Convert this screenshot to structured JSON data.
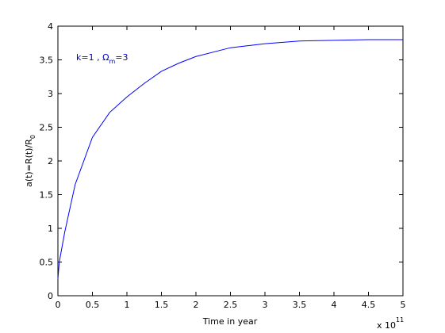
{
  "chart_data": {
    "type": "line",
    "x_label": "Time in year",
    "x_multiplier": {
      "base": "x 10",
      "exponent": "11"
    },
    "y_label": {
      "main": "a(t)=R(t)/R",
      "subscript": "0"
    },
    "annotation": {
      "before": "k=1 , Ω",
      "subscript": "m",
      "after": "=3"
    },
    "x": [
      0,
      0.02,
      0.1,
      0.25,
      0.5,
      0.75,
      1.0,
      1.25,
      1.5,
      1.75,
      2.0,
      2.5,
      3.0,
      3.5,
      4.0,
      4.5,
      5.0
    ],
    "series": [
      {
        "color": "#0000ff",
        "values": [
          0.25,
          0.5,
          0.95,
          1.65,
          2.35,
          2.72,
          2.95,
          3.15,
          3.33,
          3.45,
          3.55,
          3.68,
          3.74,
          3.78,
          3.79,
          3.8,
          3.8
        ]
      }
    ],
    "xlim": [
      0,
      5
    ],
    "xticks": [
      0,
      0.5,
      1,
      1.5,
      2,
      2.5,
      3,
      3.5,
      4,
      4.5,
      5
    ],
    "ylim": [
      0,
      4
    ],
    "yticks": [
      0,
      0.5,
      1,
      1.5,
      2,
      2.5,
      3,
      3.5,
      4
    ],
    "annotation_color": "#0000cc"
  }
}
